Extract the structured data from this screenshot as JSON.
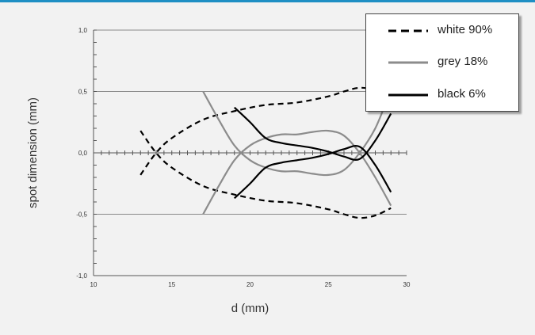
{
  "chart_data": {
    "type": "line",
    "title": "",
    "xlabel": "d (mm)",
    "ylabel": "spot dimension (mm)",
    "xlim": [
      10,
      30
    ],
    "ylim": [
      -1.0,
      1.0
    ],
    "x_ticks": [
      "10",
      "15",
      "20",
      "25",
      "30"
    ],
    "y_ticks": [
      "1,0",
      "0,5",
      "0,0",
      "-0,5",
      "-1,0"
    ],
    "y_tick_values": [
      1.0,
      0.5,
      0.0,
      -0.5,
      -1.0
    ],
    "x_tick_values": [
      10,
      15,
      20,
      25,
      30
    ],
    "grid": "horizontal major",
    "legend_position": "top-right",
    "series": [
      {
        "name": "white 90%",
        "color": "#000000",
        "style": "dashed",
        "curves": [
          [
            [
              13,
              0.18
            ],
            [
              14,
              0.0
            ],
            [
              15,
              -0.12
            ],
            [
              17,
              -0.27
            ],
            [
              19,
              -0.34
            ],
            [
              21,
              -0.39
            ],
            [
              23,
              -0.41
            ],
            [
              25,
              -0.46
            ],
            [
              26,
              -0.5
            ],
            [
              27,
              -0.53
            ],
            [
              28,
              -0.51
            ],
            [
              29,
              -0.45
            ]
          ],
          [
            [
              13,
              -0.18
            ],
            [
              14,
              0.0
            ],
            [
              15,
              0.12
            ],
            [
              17,
              0.27
            ],
            [
              19,
              0.34
            ],
            [
              21,
              0.39
            ],
            [
              23,
              0.41
            ],
            [
              25,
              0.46
            ],
            [
              26,
              0.5
            ],
            [
              27,
              0.53
            ],
            [
              28,
              0.51
            ],
            [
              29,
              0.45
            ]
          ]
        ]
      },
      {
        "name": "grey 18%",
        "color": "#8c8c8c",
        "style": "solid",
        "curves": [
          [
            [
              17,
              0.5
            ],
            [
              18,
              0.27
            ],
            [
              19,
              0.06
            ],
            [
              20,
              -0.06
            ],
            [
              21,
              -0.12
            ],
            [
              22,
              -0.15
            ],
            [
              23,
              -0.15
            ],
            [
              24,
              -0.17
            ],
            [
              25,
              -0.18
            ],
            [
              26,
              -0.14
            ],
            [
              27,
              0.0
            ],
            [
              28,
              0.2
            ],
            [
              28.8,
              0.45
            ]
          ],
          [
            [
              17,
              -0.5
            ],
            [
              18,
              -0.27
            ],
            [
              19,
              -0.06
            ],
            [
              20,
              0.06
            ],
            [
              21,
              0.12
            ],
            [
              22,
              0.15
            ],
            [
              23,
              0.15
            ],
            [
              24,
              0.17
            ],
            [
              25,
              0.18
            ],
            [
              26,
              0.14
            ],
            [
              27,
              0.0
            ],
            [
              28,
              -0.2
            ],
            [
              29,
              -0.43
            ]
          ]
        ]
      },
      {
        "name": "black 6%",
        "color": "#000000",
        "style": "solid",
        "curves": [
          [
            [
              19,
              0.37
            ],
            [
              20,
              0.25
            ],
            [
              21,
              0.12
            ],
            [
              22,
              0.08
            ],
            [
              23,
              0.06
            ],
            [
              24,
              0.04
            ],
            [
              25,
              0.01
            ],
            [
              26,
              -0.03
            ],
            [
              27,
              -0.05
            ],
            [
              28,
              0.1
            ],
            [
              29,
              0.32
            ]
          ],
          [
            [
              19,
              -0.37
            ],
            [
              20,
              -0.25
            ],
            [
              21,
              -0.12
            ],
            [
              22,
              -0.08
            ],
            [
              23,
              -0.06
            ],
            [
              24,
              -0.04
            ],
            [
              25,
              -0.01
            ],
            [
              26,
              0.03
            ],
            [
              27,
              0.05
            ],
            [
              28,
              -0.1
            ],
            [
              29,
              -0.32
            ]
          ]
        ]
      }
    ]
  }
}
